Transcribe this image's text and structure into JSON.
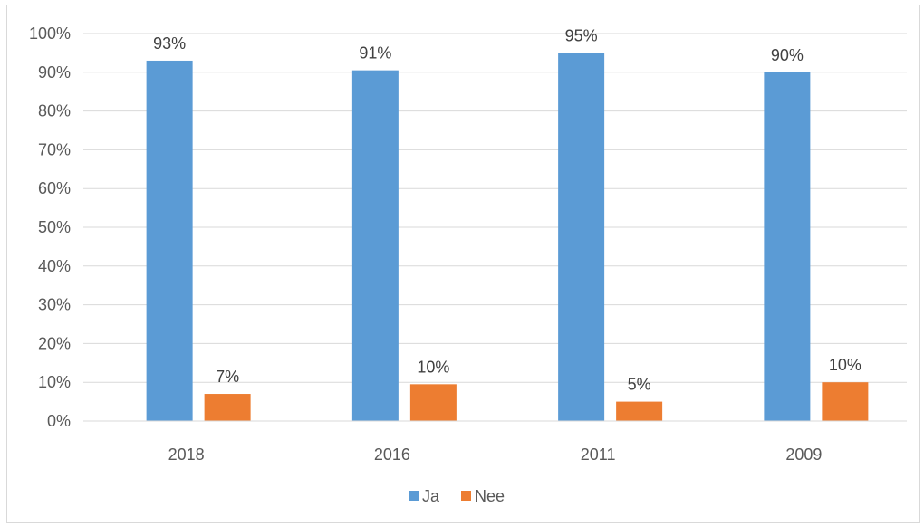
{
  "chart_data": {
    "type": "bar",
    "categories": [
      "2018",
      "2016",
      "2011",
      "2009"
    ],
    "series": [
      {
        "name": "Ja",
        "values": [
          93,
          90.5,
          95,
          90
        ],
        "labels": [
          "93%",
          "91%",
          "95%",
          "90%"
        ],
        "color": "#5b9bd5"
      },
      {
        "name": "Nee",
        "values": [
          7,
          9.5,
          5,
          10
        ],
        "labels": [
          "7%",
          "10%",
          "5%",
          "10%"
        ],
        "color": "#ed7d31"
      }
    ],
    "yticks": [
      "0%",
      "10%",
      "20%",
      "30%",
      "40%",
      "50%",
      "60%",
      "70%",
      "80%",
      "90%",
      "100%"
    ],
    "ylim": [
      0,
      100
    ],
    "grid": true,
    "legend_position": "bottom",
    "title": "",
    "xlabel": "",
    "ylabel": ""
  }
}
